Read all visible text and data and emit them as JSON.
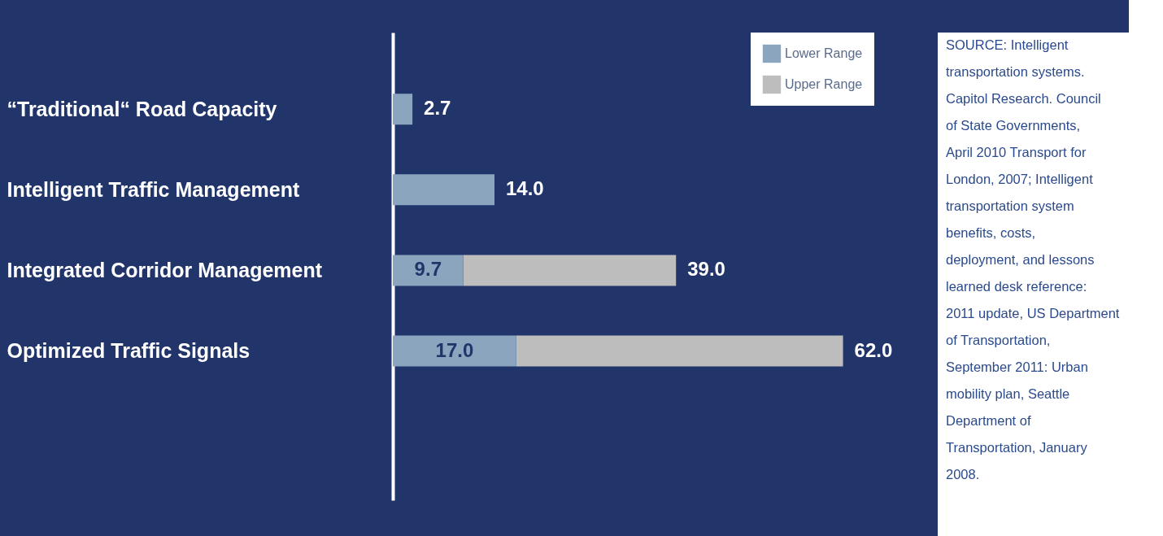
{
  "chart_data": {
    "type": "bar",
    "orientation": "horizontal",
    "stacked": true,
    "categories": [
      "“Traditional“ Road Capacity",
      "Intelligent Traffic Management",
      "Integrated Corridor Management",
      "Optimized Traffic Signals"
    ],
    "series": [
      {
        "name": "Lower Range",
        "color": "#8ba5bf",
        "values": [
          2.7,
          14.0,
          9.7,
          17.0
        ],
        "value_labels": [
          "2.7",
          "14.0",
          "9.7",
          "17.0"
        ]
      },
      {
        "name": "Upper Range",
        "color": "#bdbdbd",
        "values": [
          null,
          null,
          29.3,
          45.0
        ]
      }
    ],
    "totals": [
      null,
      null,
      "39.0",
      "62.0"
    ],
    "legend": "top right",
    "grid": false,
    "tick_labels": "y",
    "annotations": [
      "SOURCE: Intelligent transportation systems. Capitol Research. Council of State Governments, April 2010 Transport for London, 2007; Intelligent transportation system benefits, costs, deployment, and lessons learned desk reference: 2011 update, US Department of Transportation, September 2011: Urban mobility plan, Seattle Department of Transportation, January 2008."
    ]
  }
}
